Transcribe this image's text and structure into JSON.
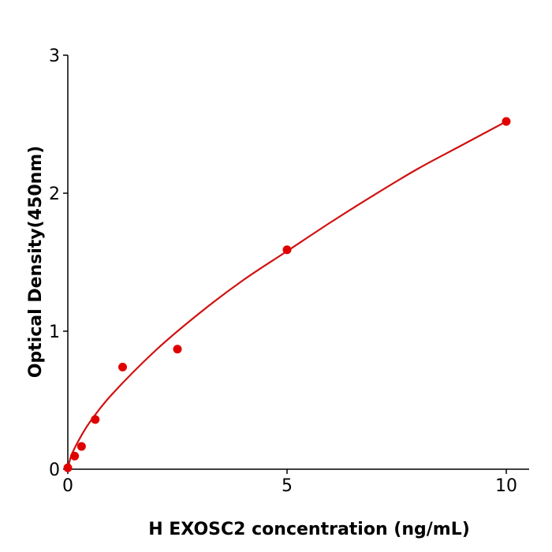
{
  "chart_data": {
    "type": "scatter",
    "title": "",
    "xlabel": "H  EXOSC2 concentration (ng/mL)",
    "ylabel": "Optical Density(450nm)",
    "xlim": [
      0,
      10.5
    ],
    "ylim": [
      0,
      3
    ],
    "xticks": [
      "0",
      "5",
      "10"
    ],
    "yticks": [
      "0",
      "1",
      "2",
      "3"
    ],
    "grid": false,
    "color": "#e00000",
    "line_color": "#d01010",
    "points": {
      "x": [
        0,
        0.156,
        0.3125,
        0.625,
        1.25,
        2.5,
        5,
        10
      ],
      "y": [
        0.01,
        0.095,
        0.165,
        0.36,
        0.74,
        0.87,
        1.59,
        2.52
      ]
    },
    "fit_curve": {
      "x": [
        0,
        0.05,
        0.1,
        0.25,
        0.5,
        1,
        2,
        3,
        4,
        5,
        6,
        7,
        8,
        9,
        10
      ],
      "y": [
        0,
        0.07,
        0.115,
        0.21,
        0.34,
        0.54,
        0.86,
        1.13,
        1.37,
        1.58,
        1.79,
        1.99,
        2.18,
        2.35,
        2.52
      ]
    }
  }
}
